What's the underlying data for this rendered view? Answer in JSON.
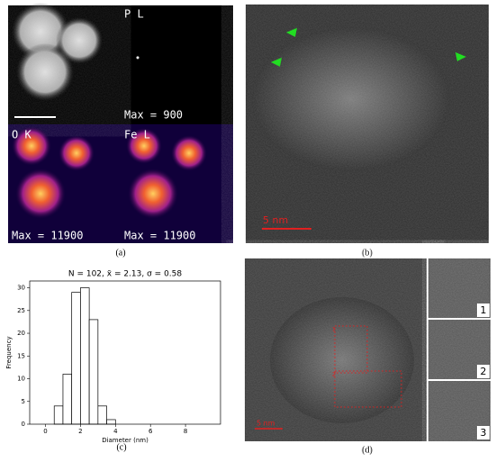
{
  "figure": {
    "panel_a": {
      "caption": "(a)",
      "maps": [
        {
          "element": "P L",
          "max": "Max = 900"
        },
        {
          "element": "O K",
          "max": "Max = 11900"
        },
        {
          "element": "Fe L",
          "max": "Max = 11900"
        }
      ]
    },
    "panel_b": {
      "caption": "(b)",
      "scale": "5 nm"
    },
    "panel_c": {
      "caption": "(c)"
    },
    "panel_d": {
      "caption": "(d)",
      "scale": "5 nm",
      "regions": [
        "1",
        "2"
      ],
      "insets": [
        "1",
        "2",
        "3"
      ]
    }
  },
  "chart_data": {
    "type": "histogram",
    "title": "N = 102, x̄ = 2.13, σ = 0.58",
    "xlabel": "Diameter (nm)",
    "ylabel": "Frequency",
    "bins": [
      0.5,
      1.0,
      1.5,
      2.0,
      2.5,
      3.0,
      3.5,
      4.0
    ],
    "counts": [
      4,
      11,
      29,
      30,
      23,
      4,
      1
    ],
    "color": "#ffffff",
    "edgecolor": "#000000",
    "xlim": [
      -0.9,
      10
    ],
    "xticks": [
      0,
      2,
      4,
      6,
      8
    ],
    "ylim": [
      0,
      31.5
    ],
    "yticks": [
      0,
      5,
      10,
      15,
      20,
      25,
      30
    ]
  }
}
